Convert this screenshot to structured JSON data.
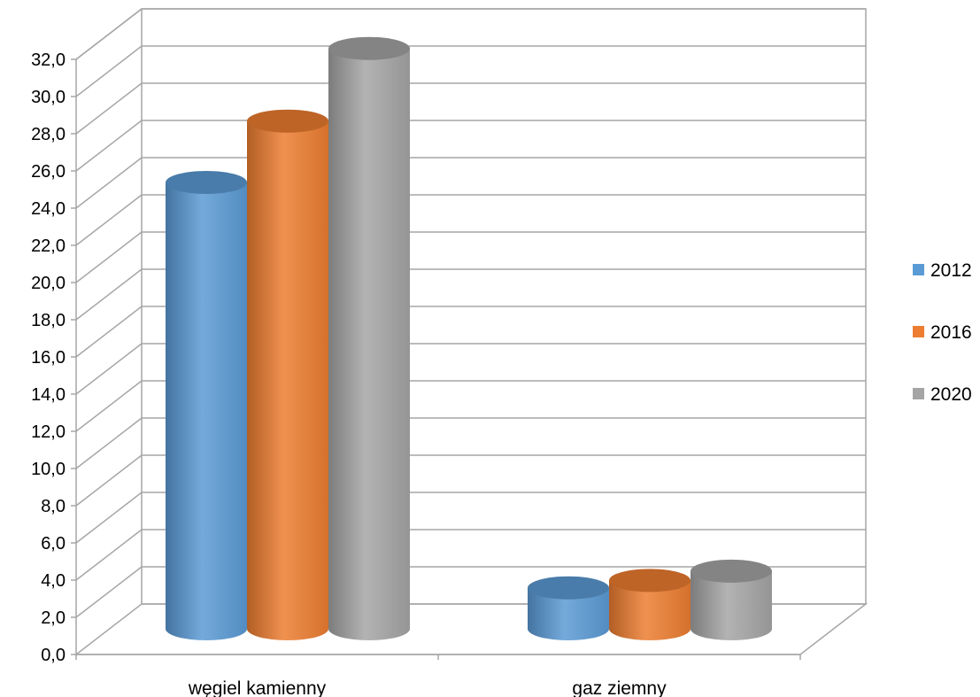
{
  "chart_data": {
    "type": "bar",
    "style": "3d-cylinder",
    "categories": [
      "węgiel kamienny",
      "gaz ziemny"
    ],
    "series": [
      {
        "name": "2012",
        "values": [
          24.0,
          2.2
        ],
        "color": "#5b9bd5"
      },
      {
        "name": "2016",
        "values": [
          27.3,
          2.6
        ],
        "color": "#ed7d31"
      },
      {
        "name": "2020",
        "values": [
          31.2,
          3.1
        ],
        "color": "#a5a5a5"
      }
    ],
    "ylim": [
      0,
      32
    ],
    "yticks": [
      "0,0",
      "2,0",
      "4,0",
      "6,0",
      "8,0",
      "10,0",
      "12,0",
      "14,0",
      "16,0",
      "18,0",
      "20,0",
      "22,0",
      "24,0",
      "26,0",
      "28,0",
      "30,0",
      "32,0"
    ],
    "title": "",
    "xlabel": "",
    "ylabel": "",
    "grid": true,
    "legend_position": "right"
  }
}
